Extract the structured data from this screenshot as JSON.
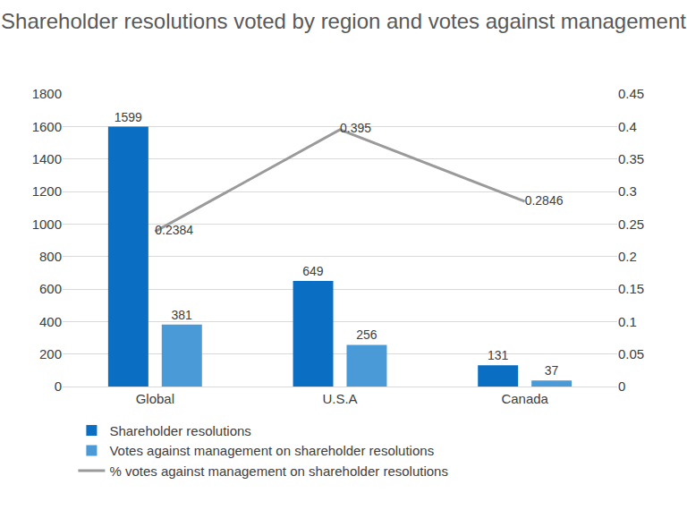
{
  "chart_data": {
    "type": "bar",
    "title": "Shareholder resolutions voted by region and votes against management",
    "categories": [
      "Global",
      "U.S.A",
      "Canada"
    ],
    "series": [
      {
        "name": "Shareholder resolutions",
        "type": "bar",
        "color": "#0a6fc2",
        "values": [
          1599,
          649,
          131
        ]
      },
      {
        "name": "Votes against management on shareholder resolutions",
        "type": "bar",
        "color": "#4a9ad8",
        "values": [
          381,
          256,
          37
        ]
      },
      {
        "name": "% votes against management on shareholder resolutions",
        "type": "line",
        "axis": "y2",
        "color": "#9a9a9a",
        "values": [
          0.2384,
          0.395,
          0.2846
        ]
      }
    ],
    "ylim": [
      0,
      1800
    ],
    "yticks": [
      0,
      200,
      400,
      600,
      800,
      1000,
      1200,
      1400,
      1600,
      1800
    ],
    "y2lim": [
      0,
      0.45
    ],
    "y2ticks": [
      0,
      0.05,
      0.1,
      0.15,
      0.2,
      0.25,
      0.3,
      0.35,
      0.4,
      0.45
    ],
    "grid": true,
    "data_labels": true,
    "legend": "bottom"
  }
}
